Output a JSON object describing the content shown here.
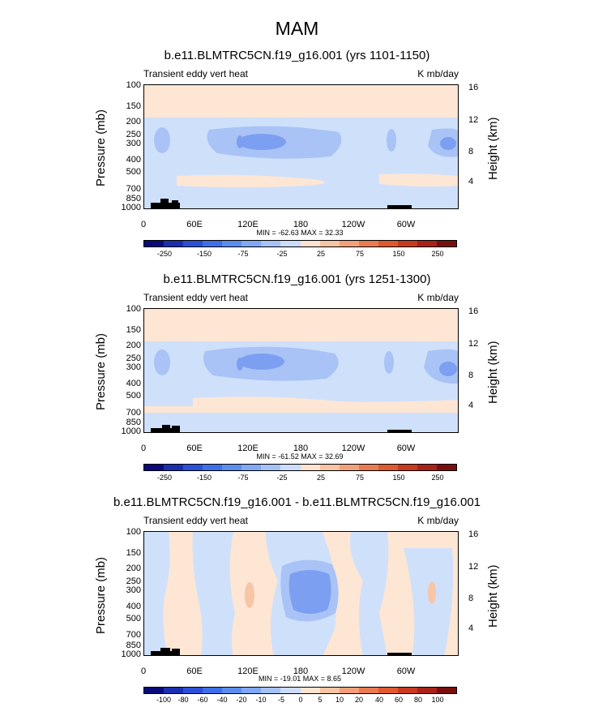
{
  "title": "MAM",
  "chart_data": [
    {
      "type": "heatmap",
      "title": "b.e11.BLMTRC5CN.f19_g16.001 (yrs 1101-1150)",
      "left_label": "Transient eddy vert heat",
      "right_label": "K mb/day",
      "ylabel": "Pressure (mb)",
      "y2label": "Height (km)",
      "yticks": [
        "100",
        "150",
        "200",
        "250",
        "300",
        "400",
        "500",
        "700",
        "850",
        "1000"
      ],
      "y2ticks": [
        "16",
        "12",
        "8",
        "4"
      ],
      "xticks": [
        "0",
        "60E",
        "120E",
        "180",
        "120W",
        "60W"
      ],
      "stats": "MIN = -62.63  MAX = 32.33",
      "colorbar_ticks": [
        "-250",
        "-150",
        "-75",
        "-25",
        "25",
        "75",
        "150",
        "250"
      ]
    },
    {
      "type": "heatmap",
      "title": "b.e11.BLMTRC5CN.f19_g16.001 (yrs 1251-1300)",
      "left_label": "Transient eddy vert heat",
      "right_label": "K mb/day",
      "ylabel": "Pressure (mb)",
      "y2label": "Height (km)",
      "yticks": [
        "100",
        "150",
        "200",
        "250",
        "300",
        "400",
        "500",
        "700",
        "850",
        "1000"
      ],
      "y2ticks": [
        "16",
        "12",
        "8",
        "4"
      ],
      "xticks": [
        "0",
        "60E",
        "120E",
        "180",
        "120W",
        "60W"
      ],
      "stats": "MIN = -61.52  MAX = 32.69",
      "colorbar_ticks": [
        "-250",
        "-150",
        "-75",
        "-25",
        "25",
        "75",
        "150",
        "250"
      ]
    },
    {
      "type": "heatmap",
      "title": "b.e11.BLMTRC5CN.f19_g16.001 - b.e11.BLMTRC5CN.f19_g16.001",
      "left_label": "Transient eddy vert heat",
      "right_label": "K mb/day",
      "ylabel": "Pressure (mb)",
      "y2label": "Height (km)",
      "yticks": [
        "100",
        "150",
        "200",
        "250",
        "300",
        "400",
        "500",
        "700",
        "850",
        "1000"
      ],
      "y2ticks": [
        "16",
        "12",
        "8",
        "4"
      ],
      "xticks": [
        "0",
        "60E",
        "120E",
        "180",
        "120W",
        "60W"
      ],
      "stats": "MIN = -19.01  MAX =  8.65",
      "colorbar_ticks": [
        "-100",
        "-80",
        "-60",
        "-40",
        "-20",
        "-10",
        "-5",
        "0",
        "5",
        "10",
        "20",
        "40",
        "60",
        "80",
        "100"
      ]
    }
  ],
  "colors": {
    "blue_scale": [
      "#0a0a7a",
      "#1a2fb0",
      "#2a50d8",
      "#3d6fe8",
      "#5b8ef0",
      "#7fa8f5",
      "#a5c2f7",
      "#cddcfa"
    ],
    "red_scale": [
      "#fde3cf",
      "#f8c4a3",
      "#f1a07a",
      "#ea7a50",
      "#e05a30",
      "#c83a1e",
      "#a8221a",
      "#7a0e0e"
    ],
    "contour_light_blue": "#cfe0fb",
    "contour_mid_blue": "#a9c3f6",
    "contour_dark_blue": "#7d9ff1",
    "contour_peach": "#fde6d4",
    "contour_salmon": "#f6c6a6"
  }
}
